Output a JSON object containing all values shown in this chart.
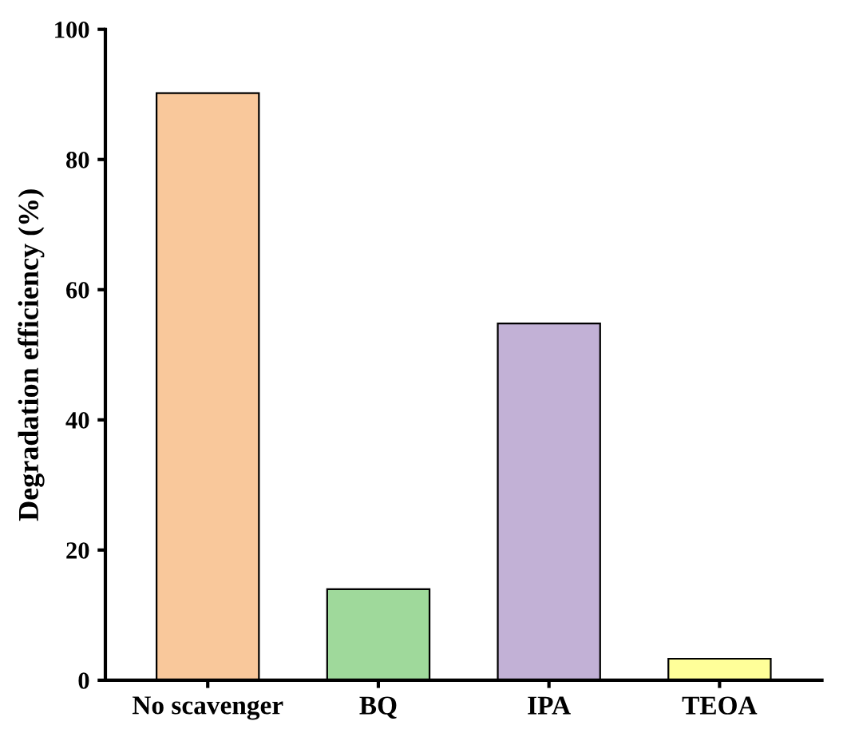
{
  "chart_data": {
    "type": "bar",
    "ylabel": "Degradation efficiency (%)",
    "categories": [
      "No scavenger",
      "BQ",
      "IPA",
      "TEOA"
    ],
    "values": [
      90.2,
      14.0,
      54.8,
      3.3
    ],
    "colors": [
      "#f9c89b",
      "#9fd99b",
      "#c2b1d6",
      "#ffff99"
    ],
    "ylim": [
      0,
      100
    ],
    "yticks": [
      0,
      20,
      40,
      60,
      80,
      100
    ],
    "grid": false
  }
}
